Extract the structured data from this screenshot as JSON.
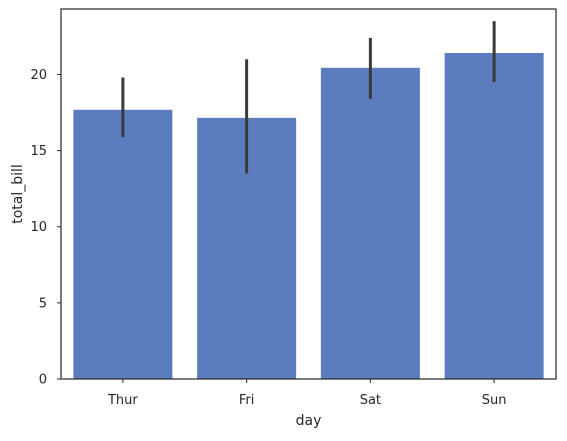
{
  "chart_data": {
    "type": "bar",
    "categories": [
      "Thur",
      "Fri",
      "Sat",
      "Sun"
    ],
    "values": [
      17.68,
      17.15,
      20.44,
      21.41
    ],
    "error_low": [
      15.9,
      13.5,
      18.4,
      19.5
    ],
    "error_high": [
      19.8,
      21.0,
      22.4,
      23.5
    ],
    "xlabel": "day",
    "ylabel": "total_bill",
    "ylim": [
      0,
      24.3
    ],
    "yticks": [
      0,
      5,
      10,
      15,
      20
    ],
    "grid": false,
    "bar_color": "#5b7dbf",
    "error_color": "#3a3a3a"
  }
}
